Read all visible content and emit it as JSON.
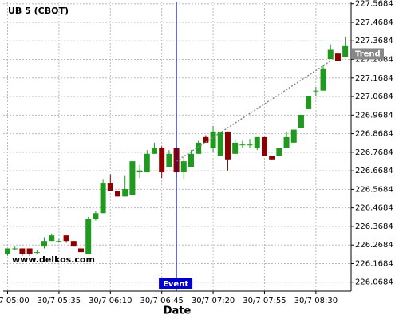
{
  "chart_data": {
    "type": "candlestick",
    "title": "UB 5 (CBOT)",
    "xlabel": "Date",
    "watermark": "www.delkos.com",
    "x": [
      "30/7 05:00",
      "30/7 05:05",
      "30/7 05:10",
      "30/7 05:15",
      "30/7 05:20",
      "30/7 05:25",
      "30/7 05:30",
      "30/7 05:35",
      "30/7 05:40",
      "30/7 05:45",
      "30/7 05:50",
      "30/7 05:55",
      "30/7 06:00",
      "30/7 06:05",
      "30/7 06:10",
      "30/7 06:15",
      "30/7 06:20",
      "30/7 06:25",
      "30/7 06:30",
      "30/7 06:35",
      "30/7 06:40",
      "30/7 06:45",
      "30/7 06:50",
      "30/7 06:55",
      "30/7 07:00",
      "30/7 07:05",
      "30/7 07:10",
      "30/7 07:15",
      "30/7 07:20",
      "30/7 07:25",
      "30/7 07:30",
      "30/7 07:35",
      "30/7 07:40",
      "30/7 07:45",
      "30/7 07:50",
      "30/7 07:55",
      "30/7 08:00",
      "30/7 08:05",
      "30/7 08:10",
      "30/7 08:15",
      "30/7 08:20",
      "30/7 08:25",
      "30/7 08:30",
      "30/7 08:35",
      "30/7 08:40",
      "30/7 08:45",
      "30/7 08:50"
    ],
    "open": [
      226.22,
      226.25,
      226.25,
      226.25,
      226.23,
      226.26,
      226.29,
      226.29,
      226.32,
      226.29,
      226.25,
      226.22,
      226.41,
      226.44,
      226.6,
      226.56,
      226.53,
      226.54,
      226.66,
      226.66,
      226.76,
      226.79,
      226.69,
      226.79,
      226.66,
      226.69,
      226.76,
      226.85,
      226.79,
      226.75,
      226.88,
      226.76,
      226.81,
      226.81,
      226.79,
      226.85,
      226.75,
      226.75,
      226.79,
      226.82,
      226.9,
      227.0,
      227.1,
      227.1,
      227.27,
      227.3,
      227.28
    ],
    "high": [
      226.25,
      226.26,
      226.25,
      226.25,
      226.24,
      226.31,
      226.33,
      226.3,
      226.32,
      226.29,
      226.27,
      226.42,
      226.45,
      226.62,
      226.65,
      226.56,
      226.64,
      226.72,
      226.7,
      226.78,
      226.82,
      226.8,
      226.78,
      226.8,
      226.74,
      226.78,
      226.83,
      226.86,
      226.91,
      226.88,
      226.88,
      226.84,
      226.83,
      226.84,
      226.85,
      226.85,
      226.75,
      226.79,
      226.88,
      226.89,
      226.97,
      227.07,
      227.12,
      227.24,
      227.35,
      227.3,
      227.39
    ],
    "low": [
      226.21,
      226.24,
      226.21,
      226.21,
      226.22,
      226.25,
      226.29,
      226.28,
      226.28,
      226.26,
      226.23,
      226.22,
      226.4,
      226.44,
      226.56,
      226.53,
      226.53,
      226.54,
      226.63,
      226.66,
      226.76,
      226.63,
      226.69,
      226.63,
      226.62,
      226.69,
      226.76,
      226.82,
      226.77,
      226.75,
      226.67,
      226.76,
      226.79,
      226.79,
      226.78,
      226.75,
      226.73,
      226.75,
      226.79,
      226.82,
      226.9,
      227.0,
      227.07,
      227.1,
      227.27,
      227.26,
      227.28
    ],
    "close": [
      226.25,
      226.25,
      226.22,
      226.22,
      226.23,
      226.29,
      226.32,
      226.29,
      226.29,
      226.26,
      226.23,
      226.41,
      226.44,
      226.6,
      226.56,
      226.53,
      226.57,
      226.72,
      226.67,
      226.76,
      226.79,
      226.66,
      226.76,
      226.66,
      226.72,
      226.76,
      226.82,
      226.82,
      226.88,
      226.88,
      226.73,
      226.82,
      226.81,
      226.81,
      226.85,
      226.75,
      226.73,
      226.79,
      226.85,
      226.89,
      226.97,
      227.07,
      227.1,
      227.22,
      227.32,
      227.26,
      227.34
    ],
    "up_color": "#1f9a1f",
    "down_color": "#8b0000",
    "xlim": [
      "30/7 04:57",
      "30/7 08:54"
    ],
    "xticks": [
      "30/7 05:00",
      "30/7 05:35",
      "30/7 06:10",
      "30/7 06:45",
      "30/7 07:20",
      "30/7 07:55",
      "30/7 08:30"
    ],
    "ylim": [
      226.02,
      227.58
    ],
    "yticks": [
      226.0684,
      226.1684,
      226.2684,
      226.3684,
      226.4684,
      226.5684,
      226.6684,
      226.7684,
      226.8684,
      226.9684,
      227.0684,
      227.1684,
      227.2684,
      227.3684,
      227.4684,
      227.5684
    ],
    "grid": true,
    "trend": {
      "label": "Trend",
      "x": [
        "30/7 06:55",
        "30/7 08:40"
      ],
      "values": [
        226.72,
        227.26
      ],
      "color": "#888888"
    },
    "event": {
      "label": "Event",
      "x": "30/7 06:55",
      "color": "#0000cc"
    }
  }
}
